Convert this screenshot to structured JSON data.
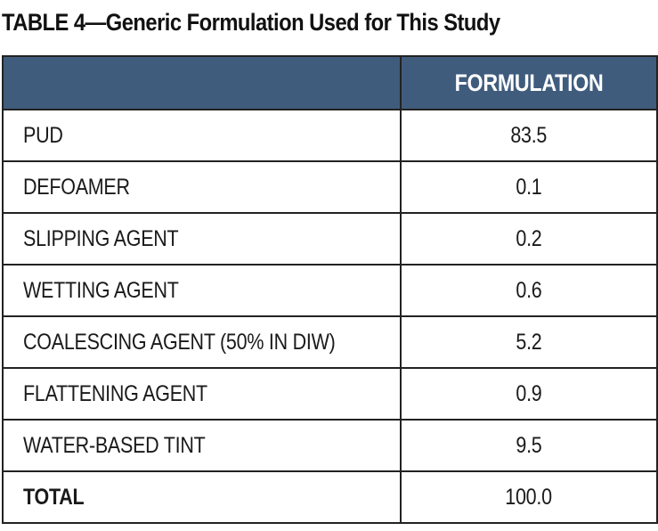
{
  "title": "TABLE 4—Generic Formulation Used for This Study",
  "table": {
    "header": {
      "col1": "",
      "col2": "FORMULATION"
    },
    "rows": [
      {
        "name": "PUD",
        "value": "83.5"
      },
      {
        "name": "DEFOAMER",
        "value": "0.1"
      },
      {
        "name": "SLIPPING AGENT",
        "value": "0.2"
      },
      {
        "name": "WETTING AGENT",
        "value": "0.6"
      },
      {
        "name": "COALESCING AGENT (50% IN DIW)",
        "value": "5.2"
      },
      {
        "name": "FLATTENING AGENT",
        "value": "0.9"
      },
      {
        "name": "WATER-BASED TINT",
        "value": "9.5"
      }
    ],
    "total": {
      "name": "TOTAL",
      "value": "100.0"
    }
  },
  "colors": {
    "header_background": "#405c7d",
    "header_text": "#ffffff",
    "border": "#222222"
  }
}
